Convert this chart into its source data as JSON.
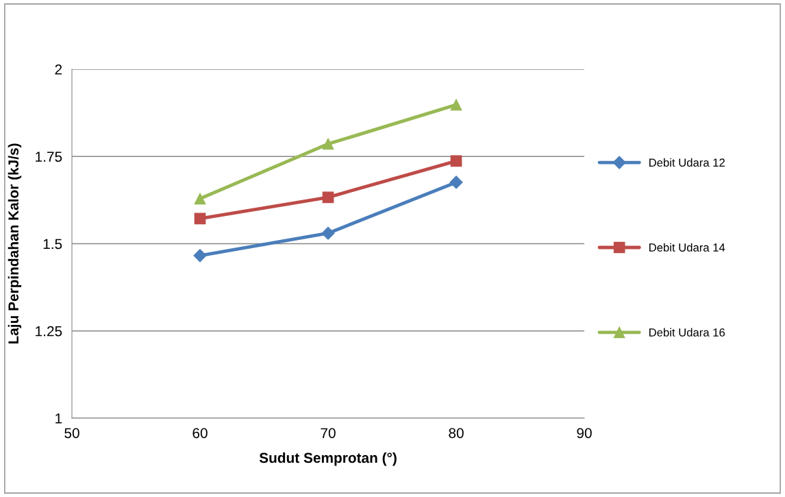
{
  "chart_data": {
    "type": "line",
    "xlabel": "Sudut Semprotan (°)",
    "ylabel": "Laju Perpindahan Kalor (kJ/s)",
    "x": [
      60,
      70,
      80
    ],
    "series": [
      {
        "name": "Debit Udara 12",
        "color": "#4a7ebb",
        "marker": "diamond",
        "values": [
          1.466,
          1.53,
          1.676
        ]
      },
      {
        "name": "Debit Udara 14",
        "color": "#be4b48",
        "marker": "square",
        "values": [
          1.572,
          1.633,
          1.737
        ]
      },
      {
        "name": "Debit Udara 16",
        "color": "#98b954",
        "marker": "triangle",
        "values": [
          1.629,
          1.786,
          1.898
        ]
      }
    ],
    "xlim": [
      50,
      90
    ],
    "xticks": [
      50,
      60,
      70,
      80,
      90
    ],
    "ylim": [
      1,
      2
    ],
    "yticks": [
      {
        "value": 1,
        "label": "1"
      },
      {
        "value": 1.25,
        "label": "1.25"
      },
      {
        "value": 1.5,
        "label": "1.5"
      },
      {
        "value": 1.75,
        "label": "1.75"
      },
      {
        "value": 2,
        "label": "2"
      }
    ],
    "grid": "y",
    "legend": "right",
    "line_style": "solid"
  }
}
